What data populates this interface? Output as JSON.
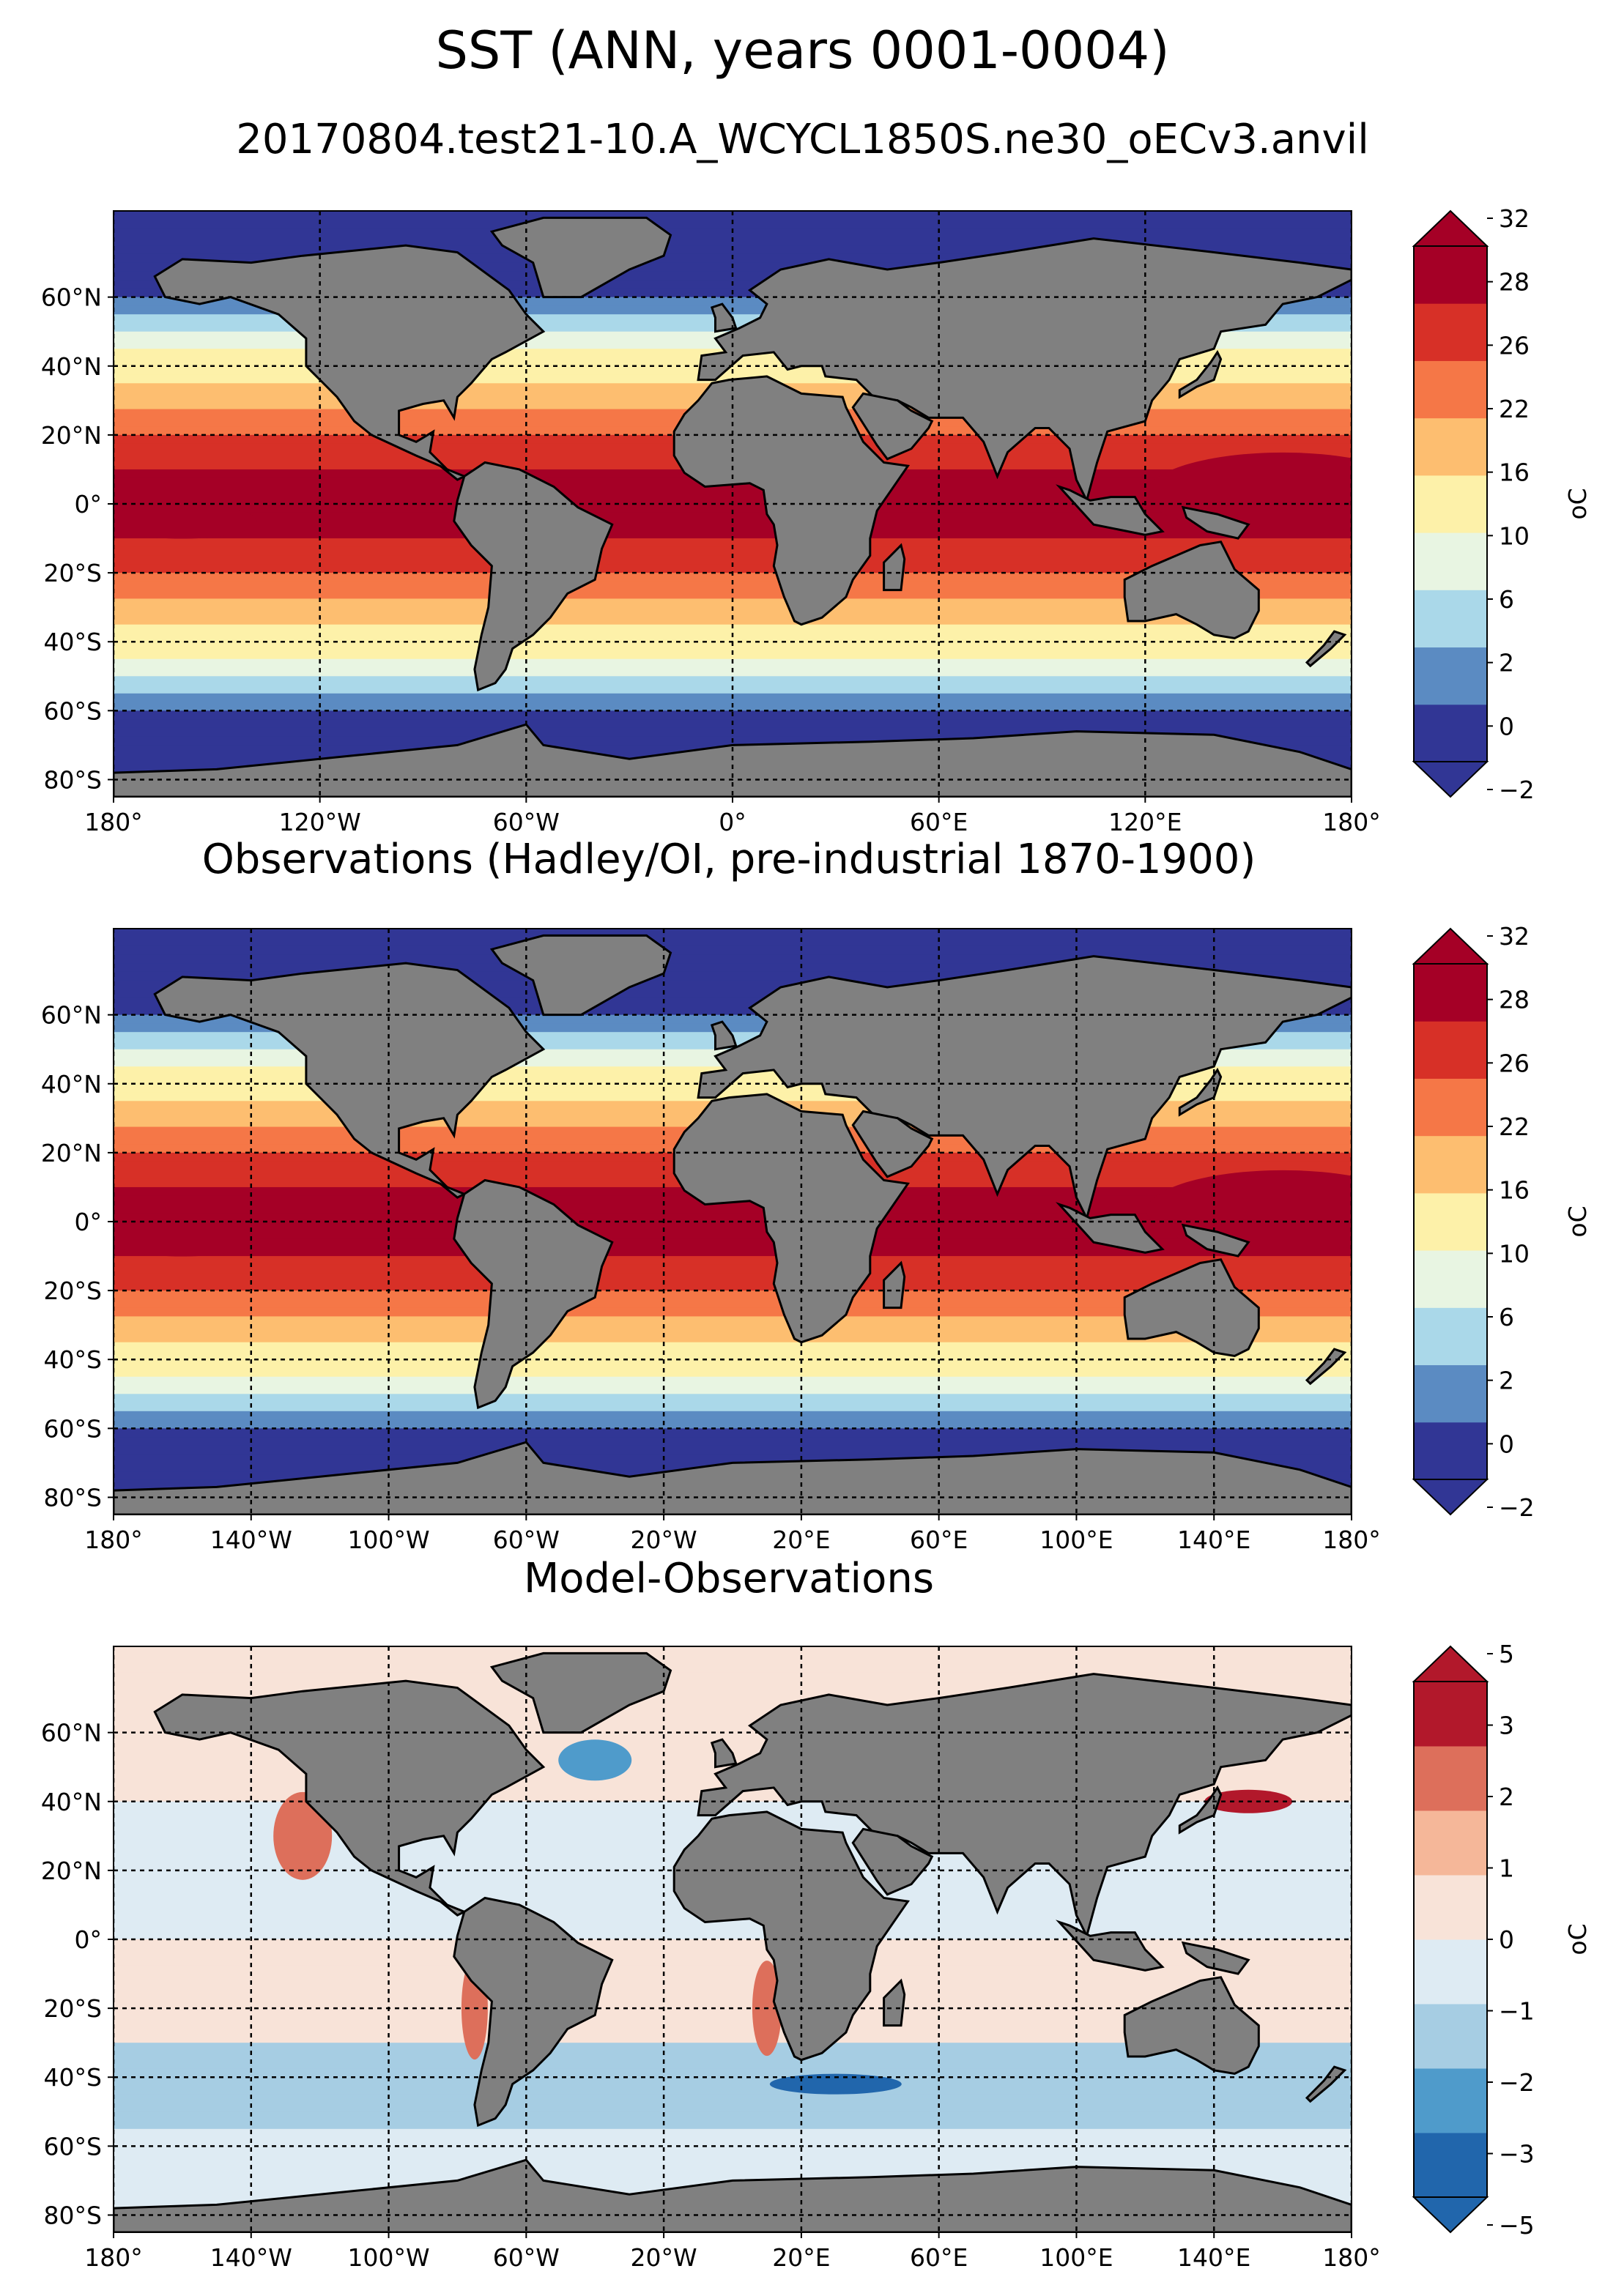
{
  "suptitle": "SST (ANN, years 0001-0004)",
  "subtitle": "20170804.test21-10.A_WCYCL1850S.ne30_oECv3.anvil",
  "chart_data": [
    {
      "type": "heatmap",
      "title": "",
      "projection": "equirectangular",
      "lat_ticks": [
        "60°N",
        "40°N",
        "20°N",
        "0°",
        "20°S",
        "40°S",
        "60°S",
        "80°S"
      ],
      "lon_ticks": [
        "180°",
        "120°W",
        "60°W",
        "0°",
        "60°E",
        "120°E",
        "180°"
      ],
      "colorbar": {
        "levels": [
          -2,
          0,
          2,
          6,
          10,
          16,
          22,
          26,
          28,
          32
        ],
        "labels": [
          "32",
          "28",
          "26",
          "22",
          "16",
          "10",
          "6",
          "2",
          "0",
          "−2"
        ],
        "colors": [
          "#313695",
          "#5b8bc2",
          "#aad8e9",
          "#e8f5e2",
          "#fdf1a9",
          "#fdbe70",
          "#f57747",
          "#d73027",
          "#a50026"
        ],
        "extend": "both",
        "unit": "oC"
      },
      "grid": true,
      "land_color": "#808080"
    },
    {
      "type": "heatmap",
      "title": "Observations (Hadley/OI, pre-industrial 1870-1900)",
      "projection": "equirectangular",
      "lat_ticks": [
        "60°N",
        "40°N",
        "20°N",
        "0°",
        "20°S",
        "40°S",
        "60°S",
        "80°S"
      ],
      "lon_ticks": [
        "180°",
        "140°W",
        "100°W",
        "60°W",
        "20°W",
        "20°E",
        "60°E",
        "100°E",
        "140°E",
        "180°"
      ],
      "colorbar": {
        "levels": [
          -2,
          0,
          2,
          6,
          10,
          16,
          22,
          26,
          28,
          32
        ],
        "labels": [
          "32",
          "28",
          "26",
          "22",
          "16",
          "10",
          "6",
          "2",
          "0",
          "−2"
        ],
        "colors": [
          "#313695",
          "#5b8bc2",
          "#aad8e9",
          "#e8f5e2",
          "#fdf1a9",
          "#fdbe70",
          "#f57747",
          "#d73027",
          "#a50026"
        ],
        "extend": "both",
        "unit": "oC"
      },
      "grid": true,
      "land_color": "#808080"
    },
    {
      "type": "heatmap",
      "title": "Model-Observations",
      "projection": "equirectangular",
      "lat_ticks": [
        "60°N",
        "40°N",
        "20°N",
        "0°",
        "20°S",
        "40°S",
        "60°S",
        "80°S"
      ],
      "lon_ticks": [
        "180°",
        "140°W",
        "100°W",
        "60°W",
        "20°W",
        "20°E",
        "60°E",
        "100°E",
        "140°E",
        "180°"
      ],
      "colorbar": {
        "levels": [
          -5,
          -3,
          -2,
          -1,
          0,
          1,
          2,
          3,
          5
        ],
        "labels": [
          "5",
          "3",
          "2",
          "1",
          "0",
          "−1",
          "−2",
          "−3",
          "−5"
        ],
        "colors": [
          "#2166ac",
          "#4f9bcb",
          "#a6cde3",
          "#deebf3",
          "#f8e3d8",
          "#f5b799",
          "#dd6f5b",
          "#b2182b"
        ],
        "extend": "both",
        "unit": "oC"
      },
      "grid": true,
      "land_color": "#808080"
    }
  ]
}
